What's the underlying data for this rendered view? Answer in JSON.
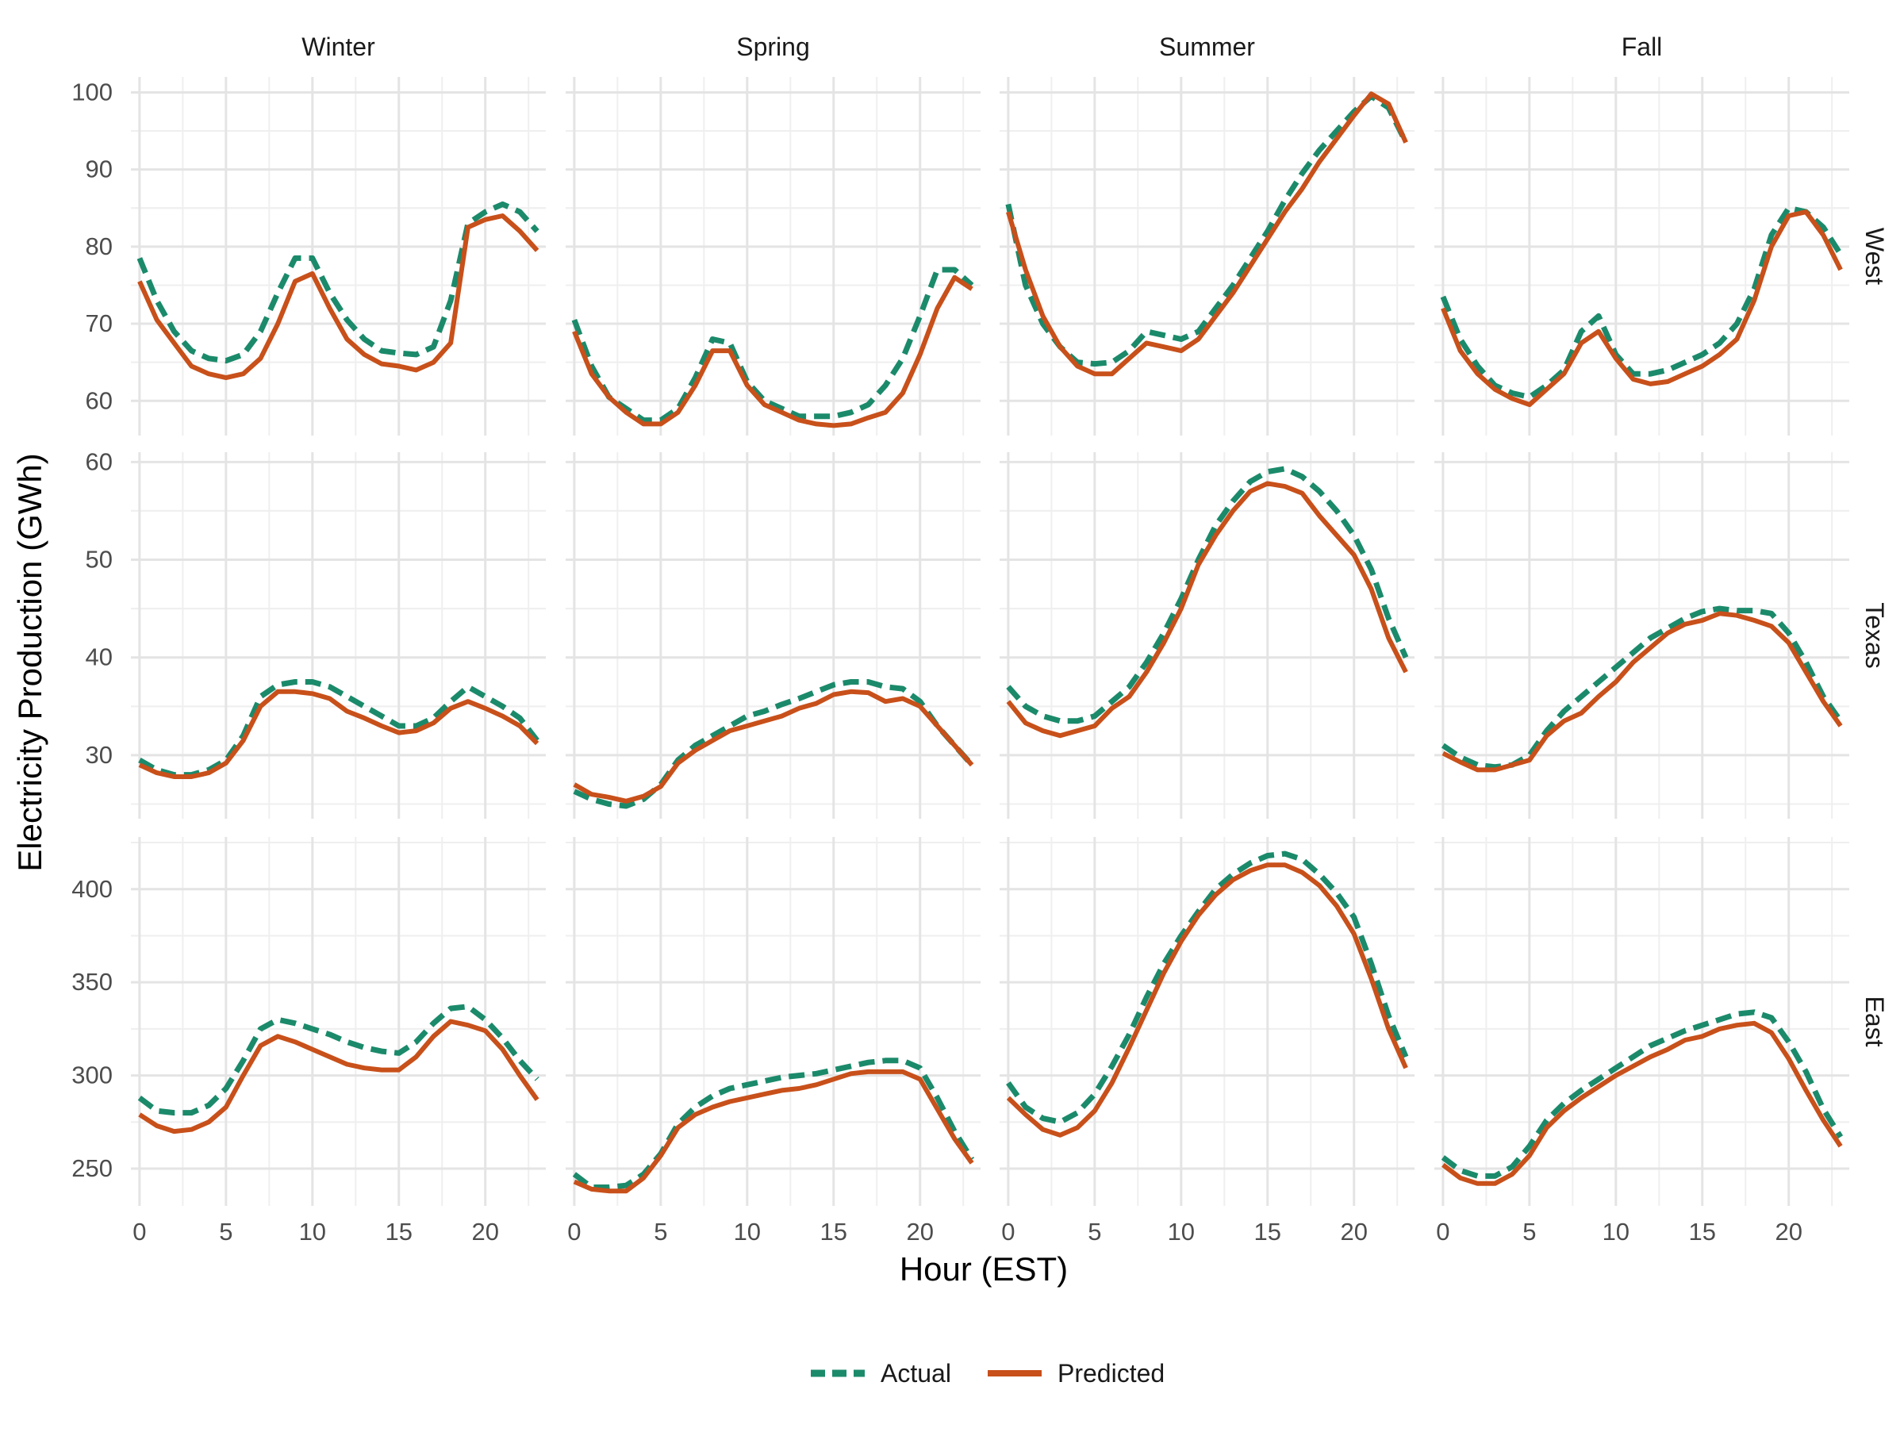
{
  "chart_data": {
    "type": "line",
    "layout": "facet-grid",
    "xlabel": "Hour (EST)",
    "ylabel": "Electricity Production (GWh)",
    "x": [
      0,
      1,
      2,
      3,
      4,
      5,
      6,
      7,
      8,
      9,
      10,
      11,
      12,
      13,
      14,
      15,
      16,
      17,
      18,
      19,
      20,
      21,
      22,
      23
    ],
    "x_ticks": [
      0,
      5,
      10,
      15,
      20
    ],
    "xlim": [
      -0.5,
      23.5
    ],
    "grid": true,
    "legend_position": "bottom",
    "legend": [
      {
        "name": "Actual",
        "color": "#1B8A6B",
        "dash": "dashed"
      },
      {
        "name": "Predicted",
        "color": "#C8501A",
        "dash": "solid"
      }
    ],
    "seasons": [
      "Winter",
      "Spring",
      "Summer",
      "Fall"
    ],
    "regions": [
      {
        "name": "West",
        "ylim": [
          55.5,
          102
        ],
        "y_ticks": [
          60,
          70,
          80,
          90,
          100
        ],
        "y_tick_labels": [
          "60",
          "70",
          "80",
          "90",
          "100"
        ],
        "panels": {
          "Winter": {
            "actual": [
              78.5,
              73,
              69,
              66.5,
              65.5,
              65.2,
              66,
              69,
              74,
              78.5,
              78.5,
              74,
              70.5,
              68,
              66.5,
              66.2,
              66,
              67,
              73,
              83,
              84.5,
              85.5,
              84.5,
              82
            ],
            "predicted": [
              75.5,
              70.5,
              67.5,
              64.5,
              63.5,
              63,
              63.5,
              65.5,
              70,
              75.5,
              76.5,
              72,
              68,
              66,
              64.8,
              64.5,
              64,
              65,
              67.5,
              82.5,
              83.5,
              84,
              82,
              79.5
            ]
          },
          "Spring": {
            "actual": [
              70.5,
              64.5,
              60.5,
              59,
              57.5,
              57.5,
              59,
              63,
              68,
              67.5,
              62.5,
              60,
              59,
              58,
              58,
              58,
              58.5,
              59.5,
              62,
              65.5,
              71,
              77,
              77,
              75
            ],
            "predicted": [
              69,
              63.5,
              60.5,
              58.5,
              57,
              57,
              58.5,
              62,
              66.5,
              66.5,
              62,
              59.5,
              58.5,
              57.5,
              57,
              56.8,
              57,
              57.8,
              58.5,
              61,
              66,
              72,
              76,
              74.5
            ]
          },
          "Summer": {
            "actual": [
              85.5,
              75,
              70,
              67,
              65,
              64.8,
              65,
              66.5,
              69,
              68.5,
              68,
              69,
              72,
              75,
              78.5,
              82,
              86,
              89.5,
              92.5,
              95,
              97.5,
              99.5,
              98,
              93.5
            ],
            "predicted": [
              84.5,
              77,
              71,
              67,
              64.5,
              63.5,
              63.5,
              65.5,
              67.5,
              67,
              66.5,
              68,
              71,
              74,
              77.5,
              81,
              84.5,
              87.5,
              91,
              94,
              97,
              99.8,
              98.5,
              93.5
            ]
          },
          "Fall": {
            "actual": [
              73.5,
              68,
              64.5,
              62,
              61,
              60.5,
              62,
              64,
              69,
              71,
              66,
              63.5,
              63.5,
              64,
              65,
              66,
              67.5,
              70,
              74.5,
              81.5,
              85,
              84.5,
              82.5,
              79
            ],
            "predicted": [
              72,
              66.5,
              63.5,
              61.5,
              60.3,
              59.5,
              61.5,
              63.5,
              67.5,
              69,
              65.5,
              62.8,
              62.2,
              62.5,
              63.5,
              64.5,
              66,
              68,
              73,
              80,
              84,
              84.5,
              81.5,
              77
            ]
          }
        }
      },
      {
        "name": "Texas",
        "ylim": [
          23.5,
          61
        ],
        "y_ticks": [
          30,
          40,
          50,
          60
        ],
        "y_tick_labels": [
          "30",
          "40",
          "50",
          "60"
        ],
        "panels": {
          "Winter": {
            "actual": [
              29.5,
              28.5,
              28,
              28,
              28.5,
              29.5,
              32,
              36,
              37.2,
              37.5,
              37.5,
              37,
              36,
              35,
              34,
              33,
              33,
              33.8,
              35.5,
              37,
              36,
              35,
              33.8,
              31.5
            ],
            "predicted": [
              29,
              28.2,
              27.8,
              27.8,
              28.2,
              29.2,
              31.5,
              35,
              36.5,
              36.5,
              36.3,
              35.8,
              34.5,
              33.8,
              33,
              32.3,
              32.5,
              33.3,
              34.8,
              35.5,
              34.8,
              34,
              33,
              31.2
            ]
          },
          "Spring": {
            "actual": [
              26.3,
              25.5,
              25,
              24.8,
              25.5,
              27,
              29.5,
              31,
              32,
              33,
              34,
              34.5,
              35.2,
              35.8,
              36.5,
              37.2,
              37.5,
              37.5,
              37,
              36.8,
              35.5,
              33,
              31,
              29
            ],
            "predicted": [
              27,
              26,
              25.7,
              25.3,
              25.8,
              26.8,
              29.2,
              30.5,
              31.5,
              32.5,
              33,
              33.5,
              34,
              34.8,
              35.3,
              36.2,
              36.5,
              36.4,
              35.5,
              35.8,
              35,
              33,
              31,
              29
            ]
          },
          "Summer": {
            "actual": [
              37,
              35,
              34,
              33.5,
              33.5,
              34,
              35.5,
              37,
              39.5,
              42.5,
              46,
              50,
              53.5,
              56,
              58,
              59,
              59.3,
              58.5,
              57,
              55,
              52.5,
              49,
              44,
              40
            ],
            "predicted": [
              35.5,
              33.3,
              32.5,
              32,
              32.5,
              33,
              34.8,
              36,
              38.5,
              41.5,
              45,
              49.5,
              52.5,
              55,
              57,
              57.8,
              57.5,
              56.8,
              54.5,
              52.5,
              50.5,
              47,
              42,
              38.5
            ]
          },
          "Fall": {
            "actual": [
              31,
              29.8,
              29,
              28.8,
              29,
              30,
              32.5,
              34.5,
              36,
              37.5,
              39,
              40.5,
              42,
              43,
              44,
              44.7,
              45,
              44.8,
              44.8,
              44.5,
              42.5,
              39.5,
              36,
              33.5
            ],
            "predicted": [
              30.2,
              29.3,
              28.5,
              28.5,
              29,
              29.5,
              32,
              33.5,
              34.3,
              36,
              37.5,
              39.5,
              41,
              42.5,
              43.4,
              43.8,
              44.5,
              44.3,
              43.8,
              43.2,
              41.5,
              38.5,
              35.5,
              33
            ]
          }
        }
      },
      {
        "name": "East",
        "ylim": [
          230,
          428
        ],
        "y_ticks": [
          250,
          300,
          350,
          400
        ],
        "y_tick_labels": [
          "250",
          "300",
          "350",
          "400"
        ],
        "panels": {
          "Winter": {
            "actual": [
              288,
              281,
              280,
              280,
              284,
              293,
              308,
              325,
              330,
              328,
              325,
              322,
              318,
              315,
              313,
              312,
              318,
              328,
              336,
              337,
              330,
              320,
              308,
              298
            ],
            "predicted": [
              279,
              273,
              270,
              271,
              275,
              283,
              300,
              316,
              321,
              318,
              314,
              310,
              306,
              304,
              303,
              303,
              310,
              321,
              329,
              327,
              324,
              314,
              300,
              287
            ]
          },
          "Spring": {
            "actual": [
              247,
              240,
              240,
              241,
              247,
              258,
              274,
              283,
              289,
              293,
              295,
              297,
              299,
              300,
              301,
              303,
              305,
              307,
              308,
              308,
              304,
              288,
              270,
              255
            ],
            "predicted": [
              243,
              239,
              238,
              238,
              245,
              257,
              272,
              279,
              283,
              286,
              288,
              290,
              292,
              293,
              295,
              298,
              301,
              302,
              302,
              302,
              298,
              282,
              266,
              253
            ]
          },
          "Summer": {
            "actual": [
              296,
              283,
              277,
              275,
              280,
              290,
              305,
              322,
              342,
              360,
              375,
              388,
              400,
              408,
              414,
              418,
              419,
              416,
              408,
              398,
              385,
              360,
              332,
              310
            ],
            "predicted": [
              288,
              279,
              271,
              268,
              272,
              281,
              296,
              315,
              335,
              355,
              372,
              386,
              397,
              405,
              410,
              413,
              413,
              409,
              402,
              391,
              376,
              352,
              325,
              304
            ]
          },
          "Fall": {
            "actual": [
              256,
              249,
              246,
              246,
              251,
              262,
              276,
              285,
              292,
              298,
              304,
              310,
              316,
              320,
              324,
              327,
              330,
              333,
              334,
              331,
              318,
              302,
              282,
              267
            ],
            "predicted": [
              252,
              245,
              242,
              242,
              247,
              257,
              272,
              281,
              288,
              294,
              300,
              305,
              310,
              314,
              319,
              321,
              325,
              327,
              328,
              323,
              309,
              292,
              276,
              262
            ]
          }
        }
      }
    ]
  }
}
